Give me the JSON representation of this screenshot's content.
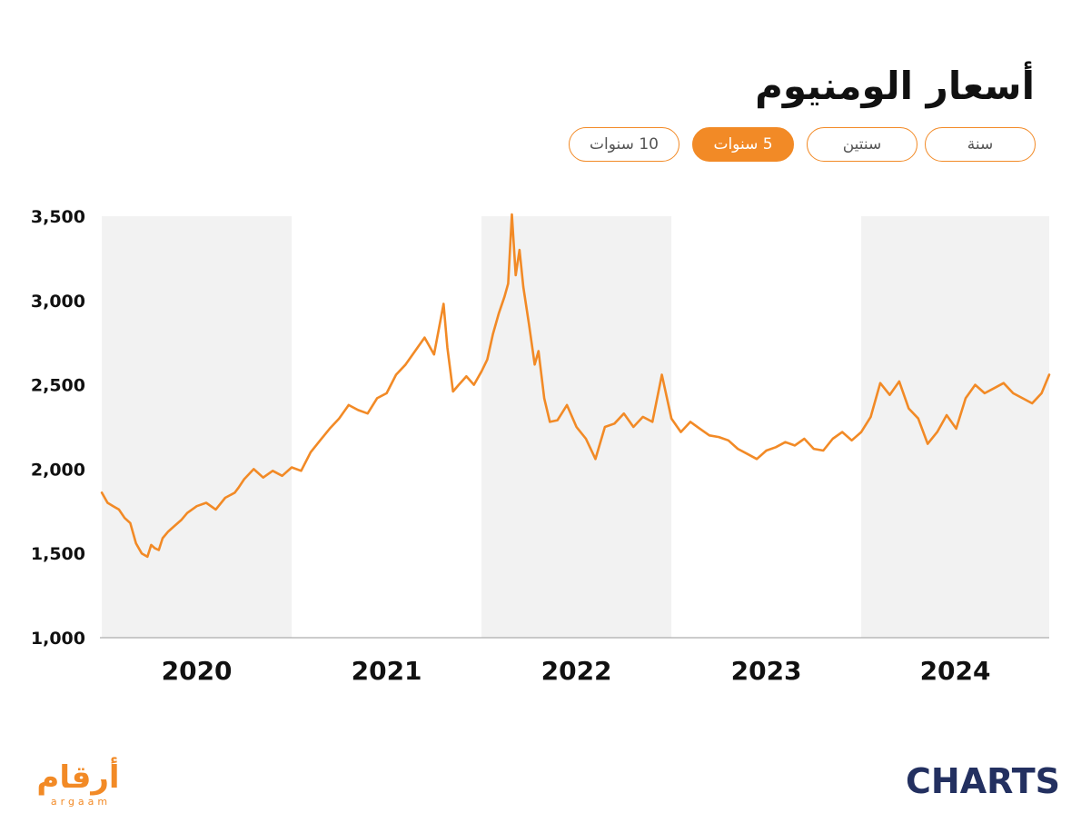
{
  "title": "أسعار الومنيوم",
  "tabs": [
    {
      "label": "سنة",
      "active": false
    },
    {
      "label": "سنتين",
      "active": false
    },
    {
      "label": "5 سنوات",
      "active": true
    },
    {
      "label": "10 سنوات",
      "active": false
    }
  ],
  "colors": {
    "accent": "#f28a26",
    "band": "#f2f2f2",
    "brand": "#233060"
  },
  "chart_data": {
    "type": "line",
    "title": "أسعار الومنيوم",
    "xlabel": "",
    "ylabel": "",
    "ylim": [
      1000,
      3500
    ],
    "yticks": [
      1000,
      1500,
      2000,
      2500,
      3000,
      3500
    ],
    "ytick_labels": [
      "1,000",
      "1,500",
      "2,000",
      "2,500",
      "3,000",
      "3,500"
    ],
    "xlim": [
      2019.99,
      2024.99
    ],
    "year_labels": [
      "2020",
      "2021",
      "2022",
      "2023",
      "2024"
    ],
    "series": [
      {
        "x": [
          2020.0,
          2020.03,
          2020.06,
          2020.09,
          2020.12,
          2020.15,
          2020.18,
          2020.21,
          2020.24,
          2020.26,
          2020.28,
          2020.3,
          2020.32,
          2020.35,
          2020.38,
          2020.42,
          2020.45,
          2020.5,
          2020.55,
          2020.6,
          2020.65,
          2020.7,
          2020.72,
          2020.75,
          2020.8,
          2020.85,
          2020.9,
          2020.95,
          2021.0,
          2021.05,
          2021.1,
          2021.15,
          2021.2,
          2021.25,
          2021.3,
          2021.35,
          2021.4,
          2021.45,
          2021.5,
          2021.55,
          2021.6,
          2021.65,
          2021.7,
          2021.75,
          2021.8,
          2021.82,
          2021.85,
          2021.88,
          2021.92,
          2021.96,
          2022.0,
          2022.03,
          2022.06,
          2022.09,
          2022.12,
          2022.14,
          2022.16,
          2022.18,
          2022.2,
          2022.22,
          2022.25,
          2022.28,
          2022.3,
          2022.33,
          2022.36,
          2022.4,
          2022.45,
          2022.5,
          2022.55,
          2022.6,
          2022.65,
          2022.7,
          2022.75,
          2022.8,
          2022.85,
          2022.9,
          2022.95,
          2023.0,
          2023.05,
          2023.1,
          2023.15,
          2023.2,
          2023.25,
          2023.3,
          2023.35,
          2023.4,
          2023.45,
          2023.5,
          2023.55,
          2023.6,
          2023.65,
          2023.7,
          2023.75,
          2023.8,
          2023.85,
          2023.9,
          2023.95,
          2024.0,
          2024.05,
          2024.1,
          2024.15,
          2024.2,
          2024.25,
          2024.3,
          2024.35,
          2024.4,
          2024.45,
          2024.5,
          2024.55,
          2024.6,
          2024.65,
          2024.7,
          2024.75,
          2024.8,
          2024.85,
          2024.9,
          2024.95,
          2024.99
        ],
        "y": [
          1860,
          1800,
          1780,
          1760,
          1710,
          1680,
          1560,
          1500,
          1480,
          1550,
          1530,
          1520,
          1590,
          1630,
          1660,
          1700,
          1740,
          1780,
          1800,
          1760,
          1830,
          1860,
          1890,
          1940,
          2000,
          1950,
          1990,
          1960,
          2010,
          1990,
          2100,
          2170,
          2240,
          2300,
          2380,
          2350,
          2330,
          2420,
          2450,
          2560,
          2620,
          2700,
          2780,
          2680,
          2980,
          2720,
          2460,
          2500,
          2550,
          2500,
          2580,
          2650,
          2800,
          2920,
          3020,
          3100,
          3510,
          3150,
          3300,
          3080,
          2860,
          2620,
          2700,
          2420,
          2280,
          2290,
          2380,
          2250,
          2180,
          2060,
          2250,
          2270,
          2330,
          2250,
          2310,
          2280,
          2560,
          2300,
          2220,
          2280,
          2240,
          2200,
          2190,
          2170,
          2120,
          2090,
          2060,
          2110,
          2130,
          2160,
          2140,
          2180,
          2120,
          2110,
          2180,
          2220,
          2170,
          2220,
          2310,
          2510,
          2440,
          2520,
          2360,
          2300,
          2150,
          2220,
          2320,
          2240,
          2420,
          2500,
          2450,
          2480,
          2510,
          2450,
          2420,
          2390,
          2450,
          2560
        ]
      }
    ]
  },
  "brand": {
    "right_logo": "CHARTS",
    "left_logo_ar": "أرقام",
    "left_logo_en": "argaam"
  }
}
